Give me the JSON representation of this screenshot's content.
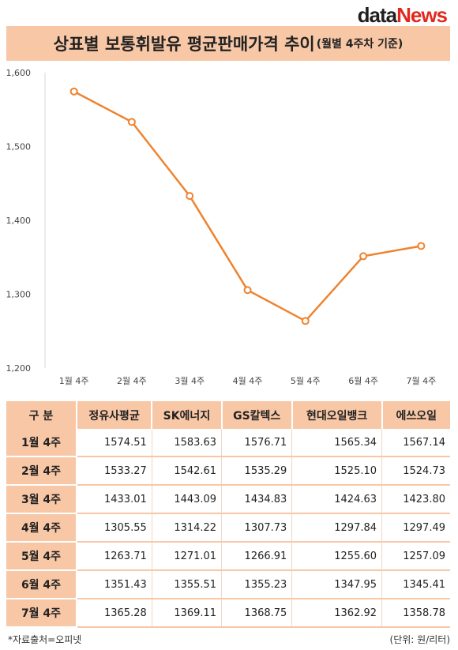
{
  "logo": {
    "part1": "data",
    "part2": "News"
  },
  "header": {
    "title": "상표별 보통휘발유 평균판매가격 추이",
    "subtitle": "(월별 4주차 기준)"
  },
  "chart_data": {
    "type": "line",
    "categories": [
      "1월 4주",
      "2월 4주",
      "3월 4주",
      "4월 4주",
      "5월 4주",
      "6월 4주",
      "7월 4주"
    ],
    "values": [
      1574.51,
      1533.27,
      1433.01,
      1305.55,
      1263.71,
      1351.43,
      1365.28
    ],
    "y_ticks": [
      "1,200",
      "1,300",
      "1,400",
      "1,500",
      "1,600"
    ],
    "ylim": [
      1200,
      1600
    ],
    "grid": false,
    "color": "#ee8430"
  },
  "table": {
    "headers": [
      "구  분",
      "정유사평균",
      "SK에너지",
      "GS칼텍스",
      "현대오일뱅크",
      "에쓰오일"
    ],
    "rows": [
      {
        "label": "1월 4주",
        "values": [
          "1574.51",
          "1583.63",
          "1576.71",
          "1565.34",
          "1567.14"
        ]
      },
      {
        "label": "2월 4주",
        "values": [
          "1533.27",
          "1542.61",
          "1535.29",
          "1525.10",
          "1524.73"
        ]
      },
      {
        "label": "3월 4주",
        "values": [
          "1433.01",
          "1443.09",
          "1434.83",
          "1424.63",
          "1423.80"
        ]
      },
      {
        "label": "4월 4주",
        "values": [
          "1305.55",
          "1314.22",
          "1307.73",
          "1297.84",
          "1297.49"
        ]
      },
      {
        "label": "5월 4주",
        "values": [
          "1263.71",
          "1271.01",
          "1266.91",
          "1255.60",
          "1257.09"
        ]
      },
      {
        "label": "6월 4주",
        "values": [
          "1351.43",
          "1355.51",
          "1355.23",
          "1347.95",
          "1345.41"
        ]
      },
      {
        "label": "7월 4주",
        "values": [
          "1365.28",
          "1369.11",
          "1368.75",
          "1362.92",
          "1358.78"
        ]
      }
    ]
  },
  "footer": {
    "source": "*자료출처=오피넷",
    "unit": "(단위: 원/리터)"
  }
}
